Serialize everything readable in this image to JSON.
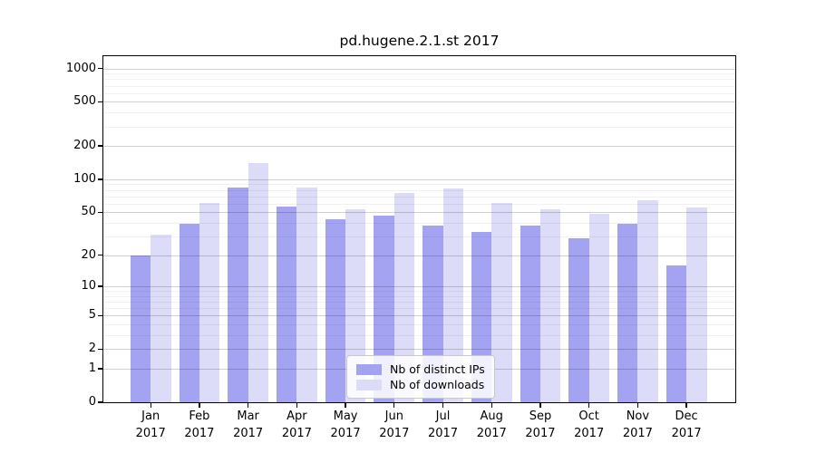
{
  "title": "pd.hugene.2.1.st 2017",
  "months": [
    "Jan",
    "Feb",
    "Mar",
    "Apr",
    "May",
    "Jun",
    "Jul",
    "Aug",
    "Sep",
    "Oct",
    "Nov",
    "Dec"
  ],
  "year_label": "2017",
  "legend": {
    "items": [
      {
        "label": "Nb of distinct IPs",
        "color": "#a3a3f2"
      },
      {
        "label": "Nb of downloads",
        "color": "#dcdcf8"
      }
    ]
  },
  "colors": {
    "distinct_ips_bar": "#a3a3f2",
    "downloads_bar": "#dcdcf8",
    "grid_major": "rgba(0,0,0,0.18)",
    "grid_minor": "rgba(0,0,0,0.055)"
  },
  "chart_data": {
    "type": "bar",
    "title": "pd.hugene.2.1.st 2017",
    "categories": [
      "Jan 2017",
      "Feb 2017",
      "Mar 2017",
      "Apr 2017",
      "May 2017",
      "Jun 2017",
      "Jul 2017",
      "Aug 2017",
      "Sep 2017",
      "Oct 2017",
      "Nov 2017",
      "Dec 2017"
    ],
    "series": [
      {
        "name": "Nb of distinct IPs",
        "color": "#a3a3f2",
        "values": [
          20,
          39,
          84,
          56,
          43,
          47,
          38,
          33,
          38,
          29,
          39,
          16
        ]
      },
      {
        "name": "Nb of downloads",
        "color": "#dcdcf8",
        "values": [
          31,
          61,
          140,
          84,
          53,
          75,
          83,
          61,
          53,
          48,
          64,
          55
        ]
      }
    ],
    "yscale": "log10(value+1)",
    "yticks": [
      0,
      1,
      2,
      5,
      10,
      20,
      50,
      100,
      200,
      500,
      1000
    ],
    "yticks_minor": [
      3,
      4,
      6,
      7,
      8,
      9,
      30,
      40,
      60,
      70,
      80,
      90,
      300,
      400,
      600,
      700,
      800,
      900
    ],
    "ylim": [
      0,
      1289
    ],
    "grid": true,
    "grid_above_bars": true,
    "legend_position": "lower center"
  }
}
